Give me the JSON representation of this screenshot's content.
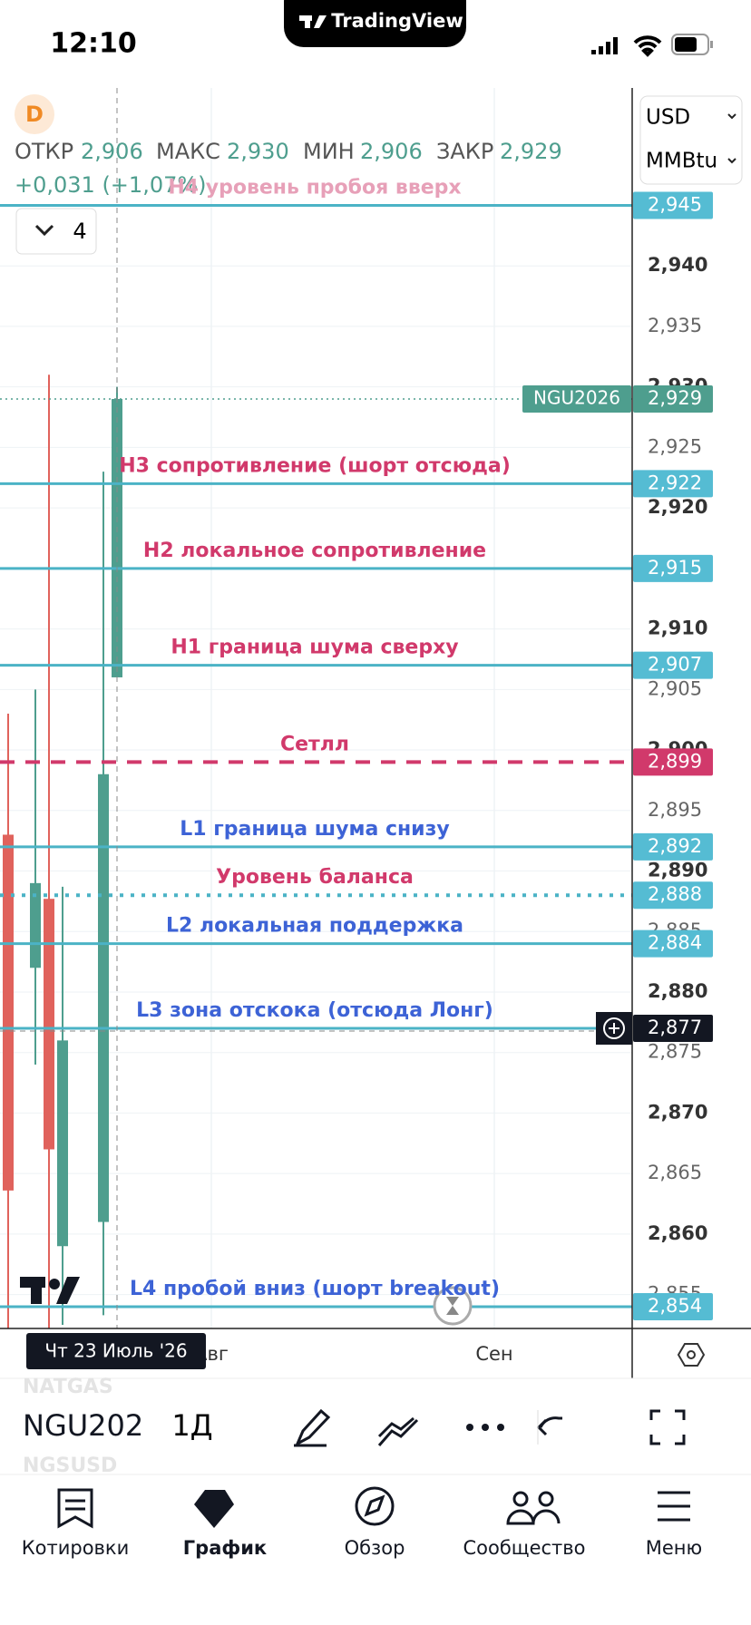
{
  "status_bar": {
    "time": "12:10",
    "app_name": "TradingView"
  },
  "legend": {
    "symbol_icon": "D",
    "open_label": "ОТКР",
    "open": "2,906",
    "high_label": "МАКС",
    "high": "2,930",
    "low_label": "МИН",
    "low": "2,906",
    "close_label": "ЗАКР",
    "close": "2,929",
    "change": "+0,031 (+1,07%)",
    "collapse_count": "4"
  },
  "price_scale": {
    "currency": "USD",
    "unit": "MMBtu"
  },
  "chart": {
    "ylim": [
      2.8522,
      2.9547
    ],
    "up_color": "#4e9e8e",
    "down_color": "#e0625c",
    "yticks": [
      {
        "value": 2.94,
        "label": "2,940"
      },
      {
        "value": 2.935,
        "label": "2,935"
      },
      {
        "value": 2.93,
        "label": "2,930"
      },
      {
        "value": 2.925,
        "label": "2,925"
      },
      {
        "value": 2.92,
        "label": "2,920"
      },
      {
        "value": 2.91,
        "label": "2,910"
      },
      {
        "value": 2.905,
        "label": "2,905"
      },
      {
        "value": 2.9,
        "label": "2,900"
      },
      {
        "value": 2.895,
        "label": "2,895"
      },
      {
        "value": 2.89,
        "label": "2,890"
      },
      {
        "value": 2.885,
        "label": "2,885"
      },
      {
        "value": 2.88,
        "label": "2,880"
      },
      {
        "value": 2.875,
        "label": "2,875"
      },
      {
        "value": 2.87,
        "label": "2,870"
      },
      {
        "value": 2.865,
        "label": "2,865"
      },
      {
        "value": 2.86,
        "label": "2,860"
      },
      {
        "value": 2.855,
        "label": "2,855"
      }
    ],
    "candles": [
      {
        "open": 2.893,
        "high": 2.903,
        "low": 2.852,
        "close": 2.8636
      },
      {
        "open": 2.882,
        "high": 2.905,
        "low": 2.874,
        "close": 2.889
      },
      {
        "open": 2.8877,
        "high": 2.931,
        "low": 2.852,
        "close": 2.867
      },
      {
        "open": 2.859,
        "high": 2.8887,
        "low": 2.8525,
        "close": 2.876
      },
      {
        "open": 2.861,
        "high": 2.923,
        "low": 2.8533,
        "close": 2.898
      },
      {
        "open": 2.906,
        "high": 2.93,
        "low": 2.906,
        "close": 2.929
      }
    ],
    "current_price": {
      "symbol": "NGU2026",
      "value": 2.929,
      "label": "2,929",
      "color": "#4e9e8e"
    },
    "levels": [
      {
        "text": "H4 уровень пробоя вверх",
        "value": 2.945,
        "label": "2,945",
        "style": "solid",
        "line_color": "#4bb3c6",
        "text_color": "#e7a0b8",
        "tag_color": "#55bcd3"
      },
      {
        "text": "H3 сопротивление (шорт отсюда)",
        "value": 2.922,
        "label": "2,922",
        "style": "solid",
        "line_color": "#4bb3c6",
        "text_color": "#d1396b",
        "tag_color": "#55bcd3"
      },
      {
        "text": "H2 локальное сопротивление",
        "value": 2.915,
        "label": "2,915",
        "style": "solid",
        "line_color": "#4bb3c6",
        "text_color": "#d1396b",
        "tag_color": "#55bcd3"
      },
      {
        "text": "H1 граница шума сверху",
        "value": 2.907,
        "label": "2,907",
        "style": "solid",
        "line_color": "#4bb3c6",
        "text_color": "#d1396b",
        "tag_color": "#55bcd3"
      },
      {
        "text": "Сетлл",
        "value": 2.899,
        "label": "2,899",
        "style": "dashed",
        "line_color": "#d1396b",
        "text_color": "#d1396b",
        "tag_color": "#d1396b"
      },
      {
        "text": "L1 граница шума снизу",
        "value": 2.892,
        "label": "2,892",
        "style": "solid",
        "line_color": "#4bb3c6",
        "text_color": "#3d63d6",
        "tag_color": "#55bcd3"
      },
      {
        "text": "Уровень баланса",
        "value": 2.888,
        "label": "2,888",
        "style": "dotted",
        "line_color": "#4bb3c6",
        "text_color": "#d1396b",
        "tag_color": "#55bcd3"
      },
      {
        "text": "L2 локальная поддержка",
        "value": 2.884,
        "label": "2,884",
        "style": "solid",
        "line_color": "#4bb3c6",
        "text_color": "#3d63d6",
        "tag_color": "#55bcd3"
      },
      {
        "text": "L3 зона отскока (отсюда Лонг)",
        "value": 2.877,
        "label": "2,877",
        "style": "solid",
        "line_color": "#4bb3c6",
        "text_color": "#3d63d6",
        "tag_color": "#131722"
      },
      {
        "text": "L4 пробой вниз (шорт breakout)",
        "value": 2.854,
        "label": "2,854",
        "style": "solid",
        "line_color": "#4bb3c6",
        "text_color": "#3d63d6",
        "tag_color": "#55bcd3"
      }
    ],
    "crosshair": {
      "value": 2.877
    },
    "time_axis": {
      "labels": [
        "Авг",
        "Сен"
      ],
      "tooltip": "Чт 23 Июль '26"
    }
  },
  "toolbar": {
    "symbols_above": "NATGAS",
    "symbol": "NGU202",
    "symbols_below": "NGSUSD",
    "interval": "1Д"
  },
  "bottom_nav": [
    "Котировки",
    "График",
    "Обзор",
    "Сообщество",
    "Меню"
  ]
}
